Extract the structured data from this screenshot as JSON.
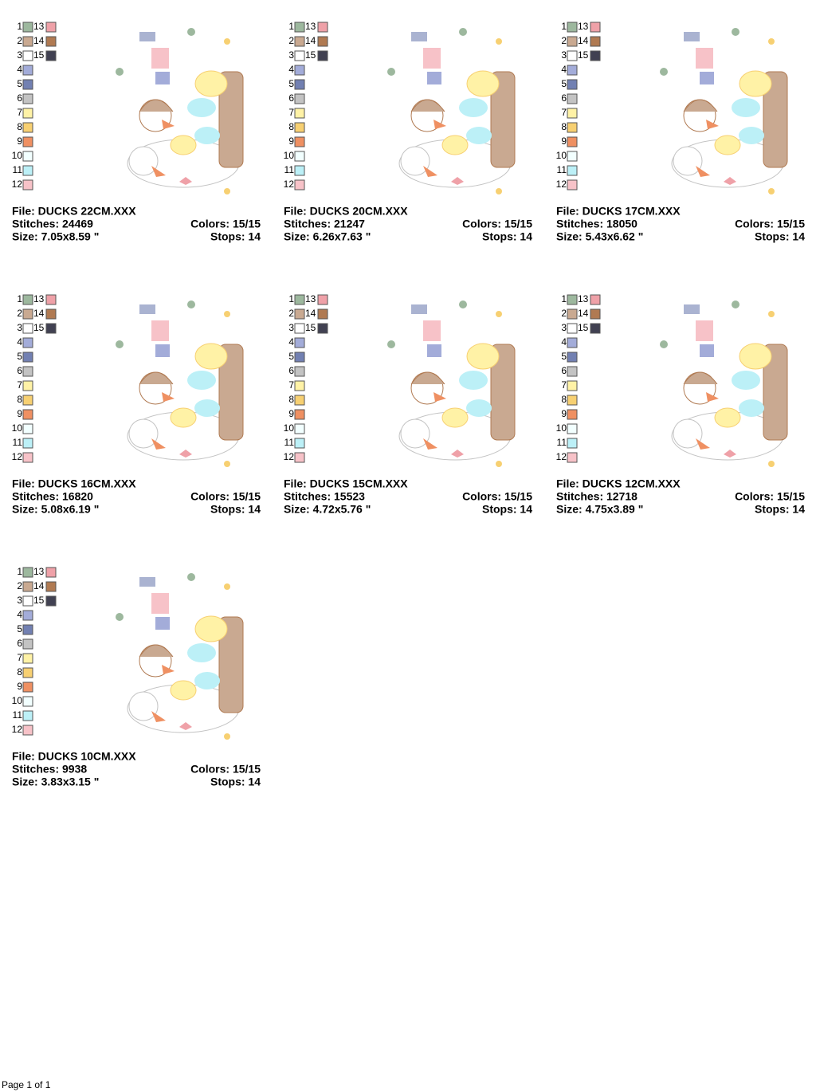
{
  "colors": [
    {
      "number": "1",
      "swatch": "#9db89e"
    },
    {
      "number": "2",
      "swatch": "#c9a991"
    },
    {
      "number": "3",
      "swatch": "#ffffff"
    },
    {
      "number": "4",
      "swatch": "#a3acd9"
    },
    {
      "number": "5",
      "swatch": "#7280b2"
    },
    {
      "number": "6",
      "swatch": "#c3c3c3"
    },
    {
      "number": "7",
      "swatch": "#fff2a6"
    },
    {
      "number": "8",
      "swatch": "#f7d072"
    },
    {
      "number": "9",
      "swatch": "#ef9062"
    },
    {
      "number": "10",
      "swatch": "#f2ffff"
    },
    {
      "number": "11",
      "swatch": "#bcf0f7"
    },
    {
      "number": "12",
      "swatch": "#f7c2c8"
    },
    {
      "number": "13",
      "swatch": "#efa1a8"
    },
    {
      "number": "14",
      "swatch": "#b07a52"
    },
    {
      "number": "15",
      "swatch": "#414152"
    }
  ],
  "cards": [
    {
      "file": "File: DUCKS 22CM.XXX",
      "stitches": "Stitches: 24469",
      "colors": "Colors: 15/15",
      "size": "Size: 7.05x8.59 \"",
      "stops": "Stops: 14"
    },
    {
      "file": "File: DUCKS 20CM.XXX",
      "stitches": "Stitches: 21247",
      "colors": "Colors: 15/15",
      "size": "Size: 6.26x7.63 \"",
      "stops": "Stops: 14"
    },
    {
      "file": "File: DUCKS 17CM.XXX",
      "stitches": "Stitches: 18050",
      "colors": "Colors: 15/15",
      "size": "Size: 5.43x6.62 \"",
      "stops": "Stops: 14"
    },
    {
      "file": "File: DUCKS 16CM.XXX",
      "stitches": "Stitches: 16820",
      "colors": "Colors: 15/15",
      "size": "Size: 5.08x6.19 \"",
      "stops": "Stops: 14"
    },
    {
      "file": "File: DUCKS 15CM.XXX",
      "stitches": "Stitches: 15523",
      "colors": "Colors: 15/15",
      "size": "Size: 4.72x5.76 \"",
      "stops": "Stops: 14"
    },
    {
      "file": "File: DUCKS 12CM.XXX",
      "stitches": "Stitches: 12718",
      "colors": "Colors: 15/15",
      "size": "Size: 4.75x3.89 \"",
      "stops": "Stops: 14"
    },
    {
      "file": "File: DUCKS 10CM.XXX",
      "stitches": "Stitches: 9938",
      "colors": "Colors: 15/15",
      "size": "Size: 3.83x3.15 \"",
      "stops": "Stops: 14"
    }
  ],
  "footer": "Page 1 of 1"
}
